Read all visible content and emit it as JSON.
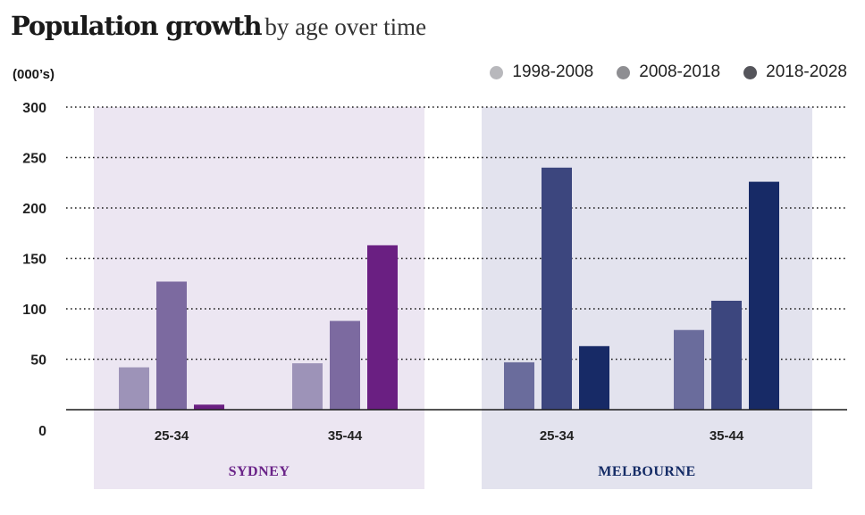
{
  "chart_data": {
    "type": "bar",
    "title": "Population growth",
    "subtitle": "by age over time",
    "ylabel": "(000’s)",
    "ylim": [
      0,
      300
    ],
    "yticks": [
      0,
      50,
      100,
      150,
      200,
      250,
      300
    ],
    "grid": "dotted horizontal",
    "legend_position": "top-right",
    "legend": [
      {
        "label": "1998-2008",
        "color": "#b8b8bc"
      },
      {
        "label": "2008-2018",
        "color": "#8e8e92"
      },
      {
        "label": "2018-2028",
        "color": "#55555b"
      }
    ],
    "groups": [
      {
        "region": "SYDNEY",
        "region_color": "#6a2388",
        "panel_color": "#ece6f2",
        "bar_colors": [
          "#9d93b8",
          "#7c6aa0",
          "#6a1f82"
        ],
        "categories": [
          {
            "label": "25-34",
            "values": [
              42,
              127,
              5
            ]
          },
          {
            "label": "35-44",
            "values": [
              46,
              88,
              163
            ]
          }
        ]
      },
      {
        "region": "MELBOURNE",
        "region_color": "#152c66",
        "panel_color": "#e3e3ee",
        "bar_colors": [
          "#6a6c9c",
          "#3c467e",
          "#172a66"
        ],
        "categories": [
          {
            "label": "25-34",
            "values": [
              47,
              240,
              63
            ]
          },
          {
            "label": "35-44",
            "values": [
              79,
              108,
              226
            ]
          }
        ]
      }
    ]
  }
}
